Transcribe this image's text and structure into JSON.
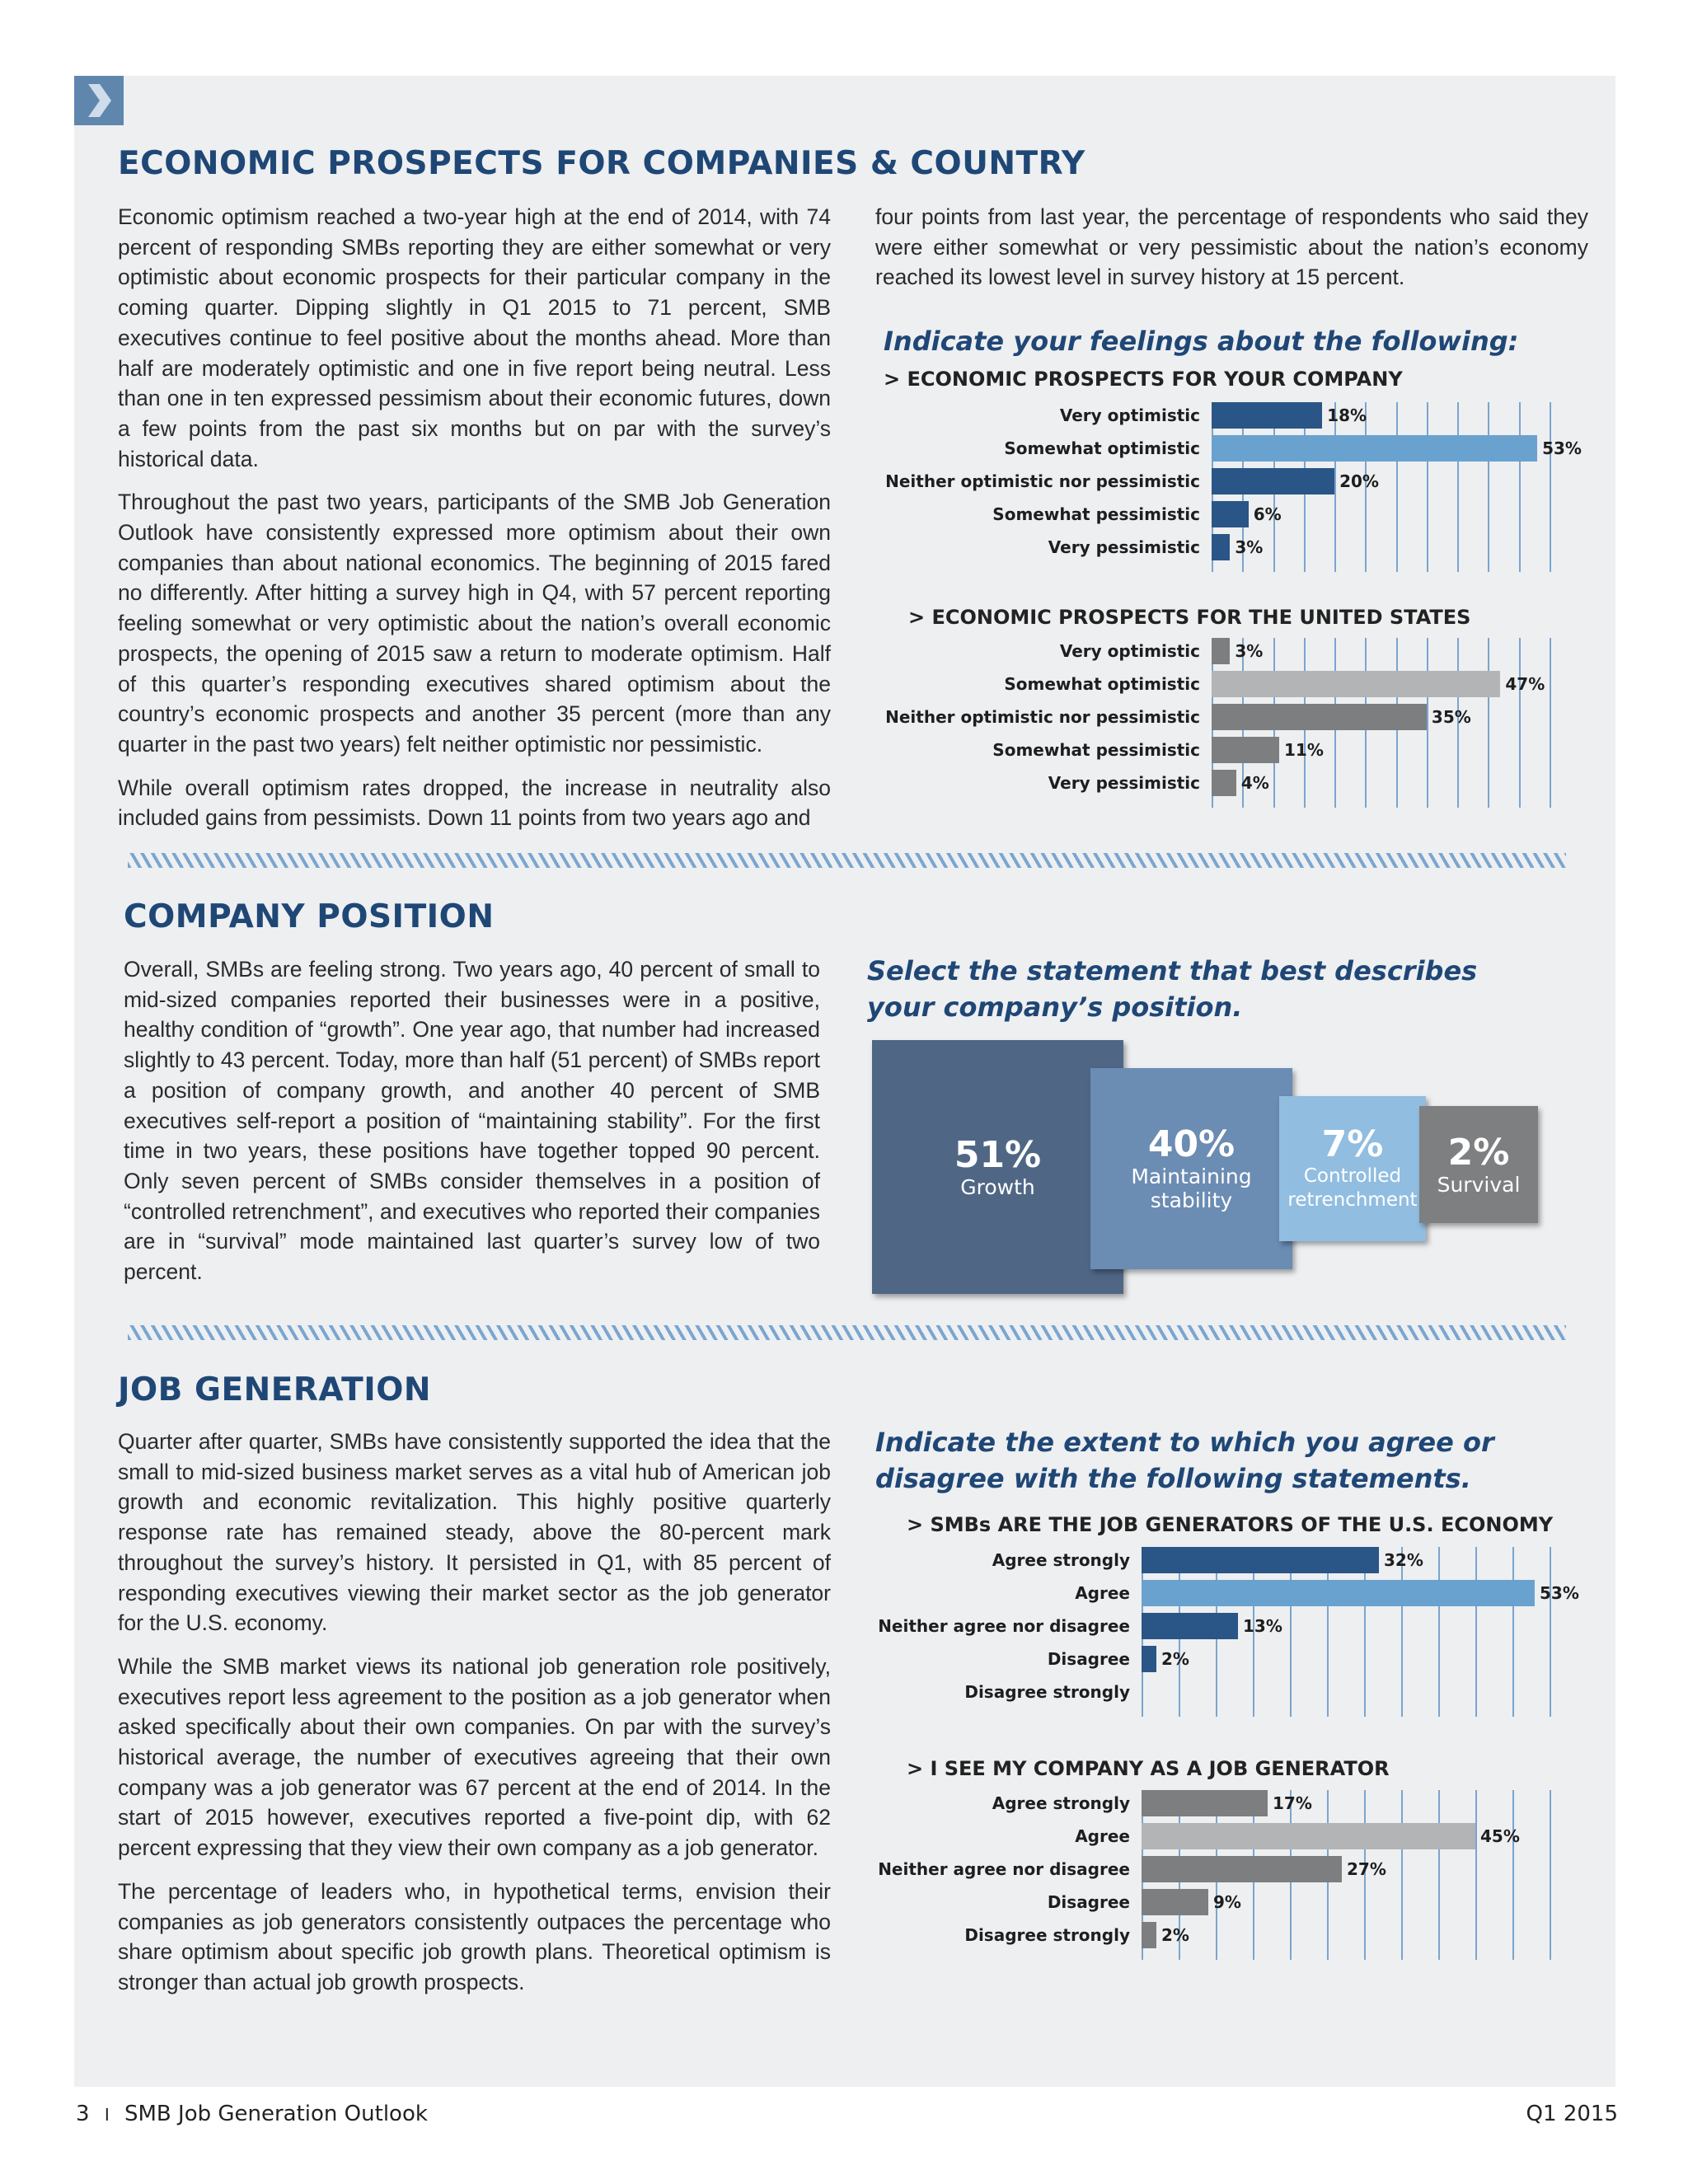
{
  "sections": {
    "economic": {
      "title": "ECONOMIC PROSPECTS FOR COMPANIES & COUNTRY",
      "paragraphs_left": [
        "Economic optimism reached a two-year high at the end of 2014, with 74 percent of responding SMBs reporting they are either somewhat or very optimistic about economic prospects for their particular company in the coming quarter. Dipping slightly in Q1 2015 to 71 percent, SMB executives continue to feel positive about the months ahead. More than half are moderately optimistic and one in five report being neutral. Less than one in ten expressed pessimism about their economic futures, down a few points from the past six months but on par with the survey’s historical data.",
        "Throughout the past two years, participants of the SMB Job Generation Outlook have consistently expressed more optimism about their own companies than about national economics. The beginning of 2015 fared no differently. After hitting a survey high in Q4, with 57 percent reporting feeling somewhat or very optimistic about the nation’s overall economic prospects, the opening of 2015 saw a return to moderate optimism. Half of this quarter’s responding executives shared optimism about the country’s economic prospects and another 35 percent (more than any quarter in the past two years) felt neither optimistic nor pessimistic.",
        "While overall optimism rates dropped, the increase in neutrality also included gains from pessimists. Down 11 points from two years ago and"
      ],
      "paragraph_right": "four points from last year, the percentage of respondents who said they were either somewhat or very pessimistic about the nation’s economy reached its lowest level in survey history at 15 percent.",
      "question": "Indicate your feelings about the following:",
      "company_heading": "> ECONOMIC PROSPECTS FOR YOUR COMPANY",
      "country_heading": "> ECONOMIC PROSPECTS FOR THE UNITED STATES"
    },
    "position": {
      "title": "COMPANY POSITION",
      "paragraph": "Overall, SMBs are feeling strong. Two years ago, 40 percent of small to mid-sized companies reported their businesses were in a positive, healthy condition of “growth”. One year ago, that number had increased slightly to 43 percent. Today, more than half (51 percent) of SMBs report a position of company growth, and another 40 percent of SMB executives self-report a position of “maintaining stability”. For the first time in two years, these positions have together topped 90 percent. Only seven percent of SMBs consider themselves in a position of “controlled retrenchment”, and executives who reported their companies are in “survival” mode maintained last quarter’s survey low of two percent.",
      "question_pre": "Select the statement that ",
      "question_em": "best describes",
      "question_post": " your company’s position."
    },
    "jobs": {
      "title": "JOB GENERATION",
      "paragraphs": [
        "Quarter after quarter, SMBs have consistently supported the idea that the small to mid-sized business market serves as a vital hub of American job growth and economic revitalization. This highly positive quarterly response rate has remained steady, above the 80-percent mark throughout the survey’s history. It persisted in Q1, with 85 percent of responding executives viewing their market sector as the job generator for the U.S. economy.",
        "While the SMB market views its national job generation role positively, executives report less agreement to the position as a job generator when asked specifically about their own companies. On par with the survey’s historical average, the number of executives agreeing that their own company was a job generator was 67 percent at the end of 2014. In the start of 2015 however, executives reported a five-point dip, with 62 percent expressing that they view their own company as a job generator.",
        "The percentage of leaders who, in hypothetical terms, envision their companies as job generators consistently outpaces the percentage who share optimism about specific job growth plans. Theoretical optimism is stronger than actual job growth prospects."
      ],
      "question": "Indicate the extent to which you agree or disagree with the following statements.",
      "smb_heading": "> SMBs ARE THE JOB GENERATORS OF THE U.S. ECONOMY",
      "mine_heading": "> I SEE MY COMPANY AS A JOB GENERATOR"
    }
  },
  "footer": {
    "page": "3",
    "separator": "I",
    "publication": "SMB Job Generation Outlook",
    "period": "Q1 2015"
  },
  "chart_data": [
    {
      "type": "bar",
      "orientation": "horizontal",
      "id": "company",
      "categories": [
        "Very optimistic",
        "Somewhat optimistic",
        "Neither optimistic nor pessimistic",
        "Somewhat pessimistic",
        "Very pessimistic"
      ],
      "values": [
        18,
        53,
        20,
        6,
        3
      ],
      "value_labels": [
        "18%",
        "53%",
        "20%",
        "6%",
        "3%"
      ],
      "colors": [
        "#2a5587",
        "#6aa2cf",
        "#2a5587",
        "#2a5587",
        "#2a5587"
      ],
      "xlim": [
        0,
        55
      ]
    },
    {
      "type": "bar",
      "orientation": "horizontal",
      "id": "country",
      "categories": [
        "Very optimistic",
        "Somewhat optimistic",
        "Neither optimistic nor pessimistic",
        "Somewhat pessimistic",
        "Very pessimistic"
      ],
      "values": [
        3,
        47,
        35,
        11,
        4
      ],
      "value_labels": [
        "3%",
        "47%",
        "35%",
        "11%",
        "4%"
      ],
      "colors": [
        "#7d7e80",
        "#b3b4b6",
        "#7d7e80",
        "#7d7e80",
        "#7d7e80"
      ],
      "xlim": [
        0,
        55
      ]
    },
    {
      "type": "bar",
      "orientation": "horizontal",
      "id": "smb",
      "categories": [
        "Agree strongly",
        "Agree",
        "Neither agree nor disagree",
        "Disagree",
        "Disagree strongly"
      ],
      "values": [
        32,
        53,
        13,
        2,
        0
      ],
      "value_labels": [
        "32%",
        "53%",
        "13%",
        "2%",
        ""
      ],
      "colors": [
        "#2a5587",
        "#6aa2cf",
        "#2a5587",
        "#2a5587",
        "#2a5587"
      ],
      "xlim": [
        0,
        55
      ]
    },
    {
      "type": "bar",
      "orientation": "horizontal",
      "id": "mine",
      "categories": [
        "Agree strongly",
        "Agree",
        "Neither agree nor disagree",
        "Disagree",
        "Disagree strongly"
      ],
      "values": [
        17,
        45,
        27,
        9,
        2
      ],
      "value_labels": [
        "17%",
        "45%",
        "27%",
        "9%",
        "2%"
      ],
      "colors": [
        "#7d7e80",
        "#b3b4b6",
        "#7d7e80",
        "#7d7e80",
        "#7d7e80"
      ],
      "xlim": [
        0,
        55
      ]
    },
    {
      "type": "proportional-boxes",
      "id": "position",
      "categories": [
        "Growth",
        "Maintaining stability",
        "Controlled retrenchment",
        "Survival"
      ],
      "values": [
        51,
        40,
        7,
        2
      ],
      "value_labels": [
        "51%",
        "40%",
        "7%",
        "2%"
      ],
      "colors": [
        "#4f6785",
        "#6b8cb3",
        "#91bde0",
        "#7e7f81"
      ]
    }
  ]
}
